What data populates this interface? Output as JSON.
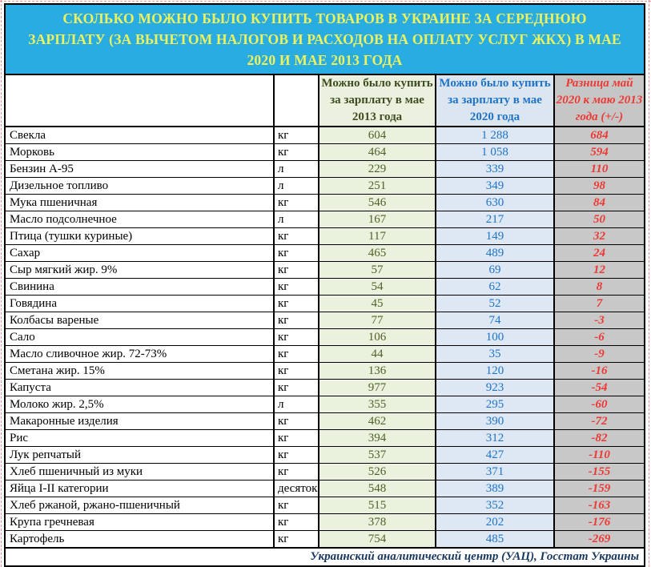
{
  "ui": {
    "title": "СКОЛЬКО МОЖНО БЫЛО КУПИТЬ ТОВАРОВ В УКРАИНЕ ЗА СЕРЕДНЮЮ ЗАРПЛАТУ (ЗА ВЫЧЕТОМ НАЛОГОВ И РАСХОДОВ НА ОПЛАТУ УСЛУГ ЖКХ) В МАЕ 2020 И МАЕ 2013 ГОДА",
    "source_note": "Украинский аналитический центр (УАЦ), Госстат Украины"
  },
  "colors": {
    "title_background": "#29ACE2",
    "title_text": "#EFF25A",
    "col_2013_background": "#EAF1DD",
    "col_2013_text": "#4F6228",
    "col_2020_background": "#DDE8F4",
    "col_2020_text": "#2074C7",
    "col_diff_background": "#C8C8C8",
    "col_diff_text": "#ED3833",
    "source_text": "#17375E",
    "grid_border": "#000000"
  },
  "chart_data": {
    "type": "table",
    "title": "СКОЛЬКО МОЖНО БЫЛО КУПИТЬ ТОВАРОВ В УКРАИНЕ ЗА СЕРЕДНЮЮ ЗАРПЛАТУ (ЗА ВЫЧЕТОМ НАЛОГОВ И РАСХОДОВ НА ОПЛАТУ УСЛУГ ЖКХ) В МАЕ 2020 И МАЕ 2013 ГОДА",
    "columns": {
      "product": "",
      "unit": "",
      "buy_2013": "Можно было купить за зарплату в мае 2013 года",
      "buy_2020": "Можно было купить за зарплату в мае 2020 года",
      "diff": "Разница май 2020 к маю 2013 года (+/-)"
    },
    "rows": [
      {
        "name": "Свекла",
        "unit": "кг",
        "buy_2013": "604",
        "buy_2020": "1 288",
        "diff": "684"
      },
      {
        "name": "Морковь",
        "unit": "кг",
        "buy_2013": "464",
        "buy_2020": "1 058",
        "diff": "594"
      },
      {
        "name": "Бензин А-95",
        "unit": "л",
        "buy_2013": "229",
        "buy_2020": "339",
        "diff": "110"
      },
      {
        "name": "Дизельное топливо",
        "unit": "л",
        "buy_2013": "251",
        "buy_2020": "349",
        "diff": "98"
      },
      {
        "name": "Мука пшеничная",
        "unit": "кг",
        "buy_2013": "546",
        "buy_2020": "630",
        "diff": "84"
      },
      {
        "name": "Масло подсолнечное",
        "unit": "л",
        "buy_2013": "167",
        "buy_2020": "217",
        "diff": "50"
      },
      {
        "name": "Птица (тушки куриные)",
        "unit": "кг",
        "buy_2013": "117",
        "buy_2020": "149",
        "diff": "32"
      },
      {
        "name": "Сахар",
        "unit": "кг",
        "buy_2013": "465",
        "buy_2020": "489",
        "diff": "24"
      },
      {
        "name": "Сыр мягкий жир. 9%",
        "unit": "кг",
        "buy_2013": "57",
        "buy_2020": "69",
        "diff": "12"
      },
      {
        "name": "Свинина",
        "unit": "кг",
        "buy_2013": "54",
        "buy_2020": "62",
        "diff": "8"
      },
      {
        "name": "Говядина",
        "unit": "кг",
        "buy_2013": "45",
        "buy_2020": "52",
        "diff": "7"
      },
      {
        "name": "Колбасы вареные",
        "unit": "кг",
        "buy_2013": "77",
        "buy_2020": "74",
        "diff": "-3"
      },
      {
        "name": "Сало",
        "unit": "кг",
        "buy_2013": "106",
        "buy_2020": "100",
        "diff": "-6"
      },
      {
        "name": "Масло сливочное жир. 72-73%",
        "unit": "кг",
        "buy_2013": "44",
        "buy_2020": "35",
        "diff": "-9"
      },
      {
        "name": "Сметана жир. 15%",
        "unit": "кг",
        "buy_2013": "136",
        "buy_2020": "120",
        "diff": "-16"
      },
      {
        "name": "Капуста",
        "unit": "кг",
        "buy_2013": "977",
        "buy_2020": "923",
        "diff": "-54"
      },
      {
        "name": "Молоко жир. 2,5%",
        "unit": "л",
        "buy_2013": "355",
        "buy_2020": "295",
        "diff": "-60"
      },
      {
        "name": "Макаронные изделия",
        "unit": "кг",
        "buy_2013": "462",
        "buy_2020": "390",
        "diff": "-72"
      },
      {
        "name": "Рис",
        "unit": "кг",
        "buy_2013": "394",
        "buy_2020": "312",
        "diff": "-82"
      },
      {
        "name": "Лук репчатый",
        "unit": "кг",
        "buy_2013": "537",
        "buy_2020": "427",
        "diff": "-110"
      },
      {
        "name": "Хлеб пшеничный из муки",
        "unit": "кг",
        "buy_2013": "526",
        "buy_2020": "371",
        "diff": "-155"
      },
      {
        "name": "Яйца I-II категории",
        "unit": "десяток",
        "buy_2013": "548",
        "buy_2020": "389",
        "diff": "-159"
      },
      {
        "name": "Хлеб ржаной, ржано-пшеничный",
        "unit": "кг",
        "buy_2013": "515",
        "buy_2020": "352",
        "diff": "-163"
      },
      {
        "name": "Крупа гречневая",
        "unit": "кг",
        "buy_2013": "378",
        "buy_2020": "202",
        "diff": "-176"
      },
      {
        "name": "Картофель",
        "unit": "кг",
        "buy_2013": "754",
        "buy_2020": "485",
        "diff": "-269"
      }
    ],
    "source": "Украинский аналитический центр (УАЦ), Госстат Украины"
  }
}
